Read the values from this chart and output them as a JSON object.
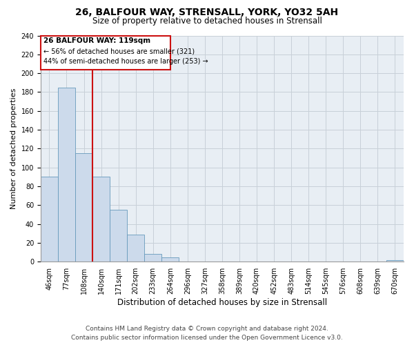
{
  "title": "26, BALFOUR WAY, STRENSALL, YORK, YO32 5AH",
  "subtitle": "Size of property relative to detached houses in Strensall",
  "xlabel": "Distribution of detached houses by size in Strensall",
  "ylabel": "Number of detached properties",
  "footer_line1": "Contains HM Land Registry data © Crown copyright and database right 2024.",
  "footer_line2": "Contains public sector information licensed under the Open Government Licence v3.0.",
  "bin_labels": [
    "46sqm",
    "77sqm",
    "108sqm",
    "140sqm",
    "171sqm",
    "202sqm",
    "233sqm",
    "264sqm",
    "296sqm",
    "327sqm",
    "358sqm",
    "389sqm",
    "420sqm",
    "452sqm",
    "483sqm",
    "514sqm",
    "545sqm",
    "576sqm",
    "608sqm",
    "639sqm",
    "670sqm"
  ],
  "bar_heights": [
    90,
    185,
    115,
    90,
    55,
    29,
    8,
    5,
    0,
    0,
    0,
    0,
    0,
    0,
    0,
    0,
    0,
    0,
    0,
    0,
    2
  ],
  "bar_color": "#ccdaeb",
  "bar_edge_color": "#6699bb",
  "plot_bg_color": "#e8eef4",
  "property_line_color": "#cc1111",
  "ylim_max": 240,
  "ytick_step": 20,
  "annotation_title": "26 BALFOUR WAY: 119sqm",
  "annotation_line1": "← 56% of detached houses are smaller (321)",
  "annotation_line2": "44% of semi-detached houses are larger (253) →",
  "background_color": "#ffffff",
  "grid_color": "#c8d0d8",
  "title_fontsize": 10,
  "subtitle_fontsize": 8.5,
  "ylabel_fontsize": 8,
  "xlabel_fontsize": 8.5,
  "tick_fontsize": 7,
  "footer_fontsize": 6.5
}
